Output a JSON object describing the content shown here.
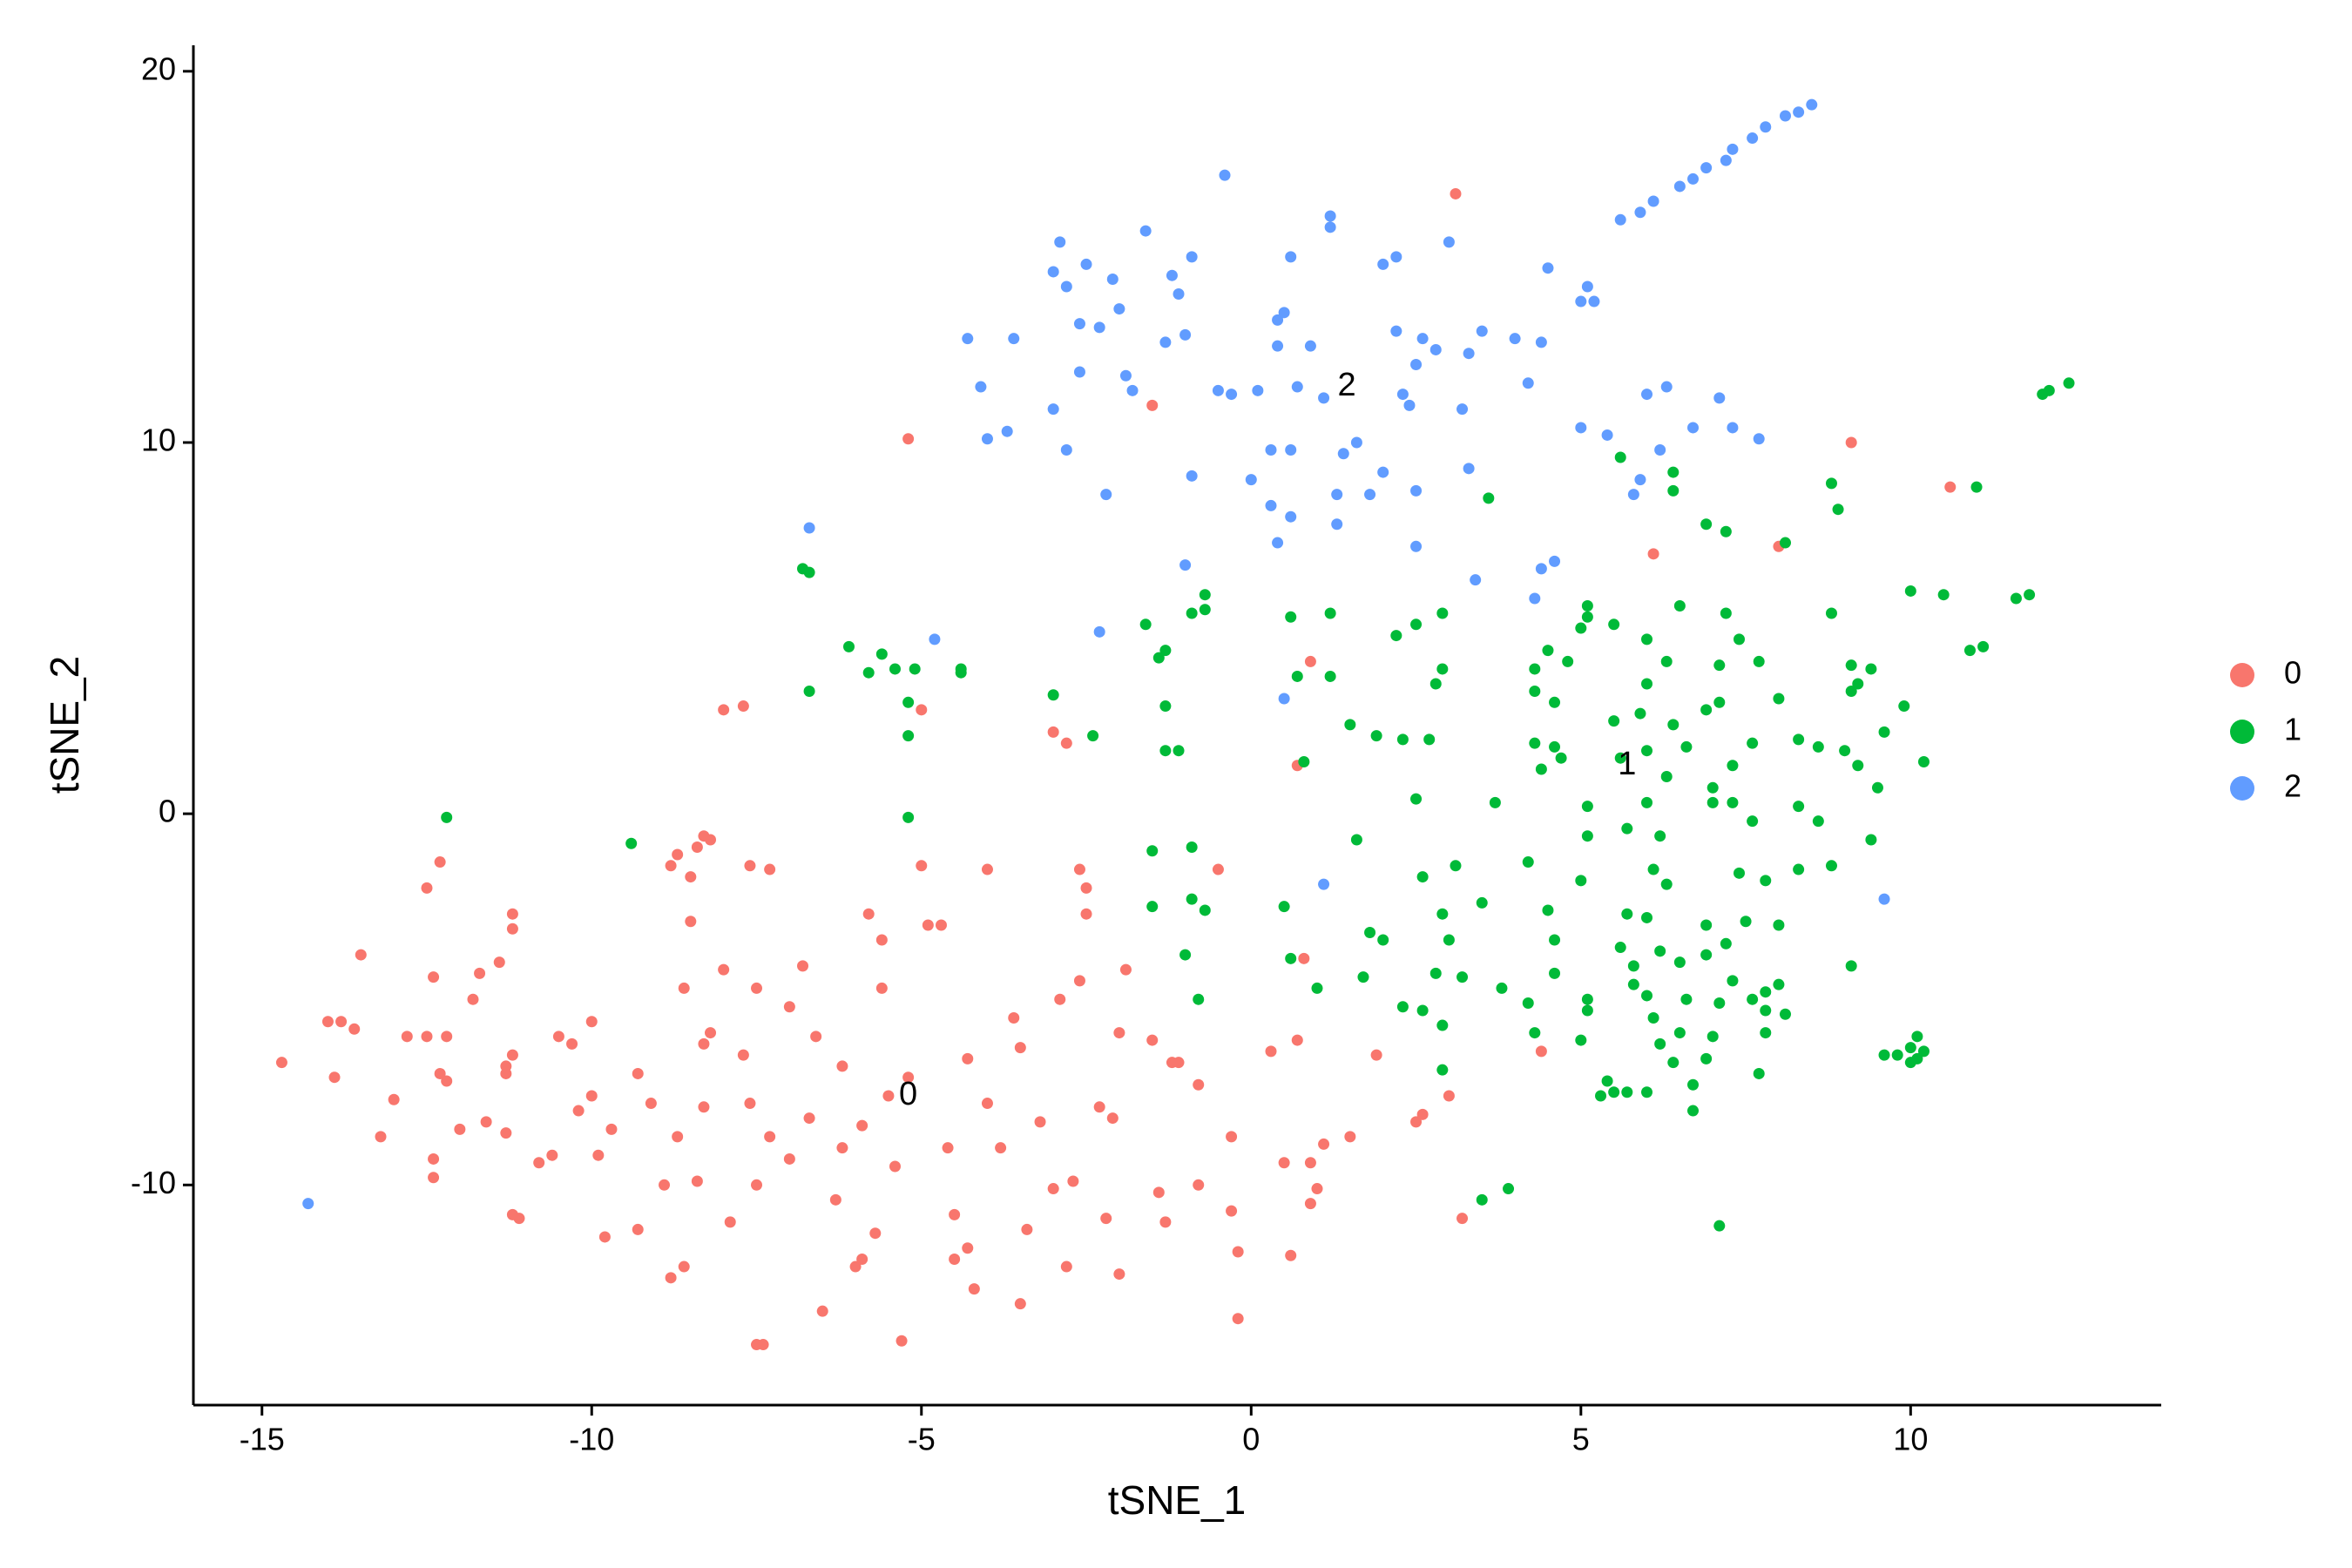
{
  "chart_data": {
    "type": "scatter",
    "x_label": "tSNE_1",
    "y_label": "tSNE_2",
    "xlim": [
      -16.04,
      13.8
    ],
    "ylim": [
      -15.93,
      20.7
    ],
    "xticks": [
      -15,
      -10,
      -5,
      0,
      5,
      10
    ],
    "yticks": [
      -10,
      0,
      10,
      20
    ],
    "grid": false,
    "legend": "right",
    "labels": [
      {
        "text": "0",
        "x": -5.2,
        "y": -7.6
      },
      {
        "text": "1",
        "x": 5.7,
        "y": 1.3
      },
      {
        "text": "2",
        "x": 1.45,
        "y": 11.5
      }
    ],
    "series": [
      {
        "name": "0",
        "color": "#F8766D",
        "x": [
          3.1,
          -1.5,
          -5.2,
          9.1,
          10.6,
          8.0,
          6.1,
          0.9,
          -8.0,
          -7.7,
          -5.0,
          -3.0,
          -2.8,
          0.7,
          -14.7,
          -14.0,
          -13.8,
          -13.9,
          -13.6,
          -13.5,
          -13.2,
          -13.0,
          -12.8,
          -12.5,
          -12.3,
          -12.5,
          -12.4,
          -12.3,
          -12.2,
          -12.2,
          -12.4,
          -12.4,
          -12.0,
          -11.8,
          -11.7,
          -11.6,
          -11.4,
          -11.3,
          -11.3,
          -11.2,
          -11.3,
          -11.2,
          -11.2,
          -11.2,
          -11.1,
          -10.8,
          -10.6,
          -10.5,
          -10.3,
          -10.0,
          -10.0,
          -9.9,
          -10.2,
          -9.8,
          -9.3,
          -9.1,
          -8.9,
          -8.8,
          -8.6,
          -8.6,
          -8.7,
          -8.4,
          -8.3,
          -8.3,
          -8.2,
          -8.2,
          -8.3,
          -8.4,
          -8.7,
          -8.5,
          -8.5,
          -8.8,
          -8.0,
          -7.9,
          -7.7,
          -7.6,
          -7.5,
          -7.5,
          -7.5,
          -7.4,
          -7.3,
          -7.3,
          -7.0,
          -7.0,
          -6.8,
          -6.6,
          -6.3,
          -6.2,
          -6.0,
          -5.9,
          -5.8,
          -5.6,
          -5.6,
          -5.5,
          -5.4,
          -5.3,
          -5.2,
          -5.0,
          -4.9,
          -4.7,
          -4.6,
          -4.5,
          -4.3,
          -4.2,
          -4.0,
          -3.8,
          -3.6,
          -3.5,
          -3.4,
          -3.2,
          -3.0,
          -2.9,
          -2.8,
          -2.6,
          -2.6,
          -2.5,
          -2.5,
          -2.3,
          -2.2,
          -2.0,
          -2.0,
          -1.9,
          -1.5,
          -1.4,
          -1.3,
          -1.2,
          -0.8,
          -0.8,
          -0.3,
          -0.2,
          -0.2,
          0.3,
          0.5,
          0.6,
          0.7,
          0.8,
          0.9,
          1.0,
          1.1,
          1.5,
          -6.5,
          -3.5,
          -4.5,
          -5.7,
          -2.1,
          -4.0,
          -6.7,
          -7.6,
          -5.9,
          -2.7,
          -9.3,
          -9.7,
          1.9,
          2.5,
          2.6,
          3.0,
          4.4,
          3.2,
          -0.5,
          -1.1,
          -0.3,
          0.9,
          -6.2,
          -4.3
        ],
        "values": [
          16.7,
          11.0,
          10.1,
          10.0,
          8.8,
          7.2,
          7.0,
          4.1,
          2.8,
          2.9,
          2.8,
          2.2,
          1.9,
          1.3,
          -6.7,
          -5.6,
          -5.6,
          -7.1,
          -5.8,
          -3.8,
          -8.7,
          -7.7,
          -6.0,
          -2.0,
          -1.3,
          -6.0,
          -4.4,
          -7.0,
          -7.2,
          -6.0,
          -9.3,
          -9.8,
          -8.5,
          -5.0,
          -4.3,
          -8.3,
          -4.0,
          -6.8,
          -7.0,
          -6.5,
          -8.6,
          -2.7,
          -3.1,
          -10.8,
          -10.9,
          -9.4,
          -9.2,
          -6.0,
          -6.2,
          -5.6,
          -7.6,
          -9.2,
          -8.0,
          -11.4,
          -11.2,
          -7.8,
          -10.0,
          -12.5,
          -12.2,
          -4.7,
          -8.7,
          -9.9,
          -6.2,
          -7.9,
          -5.9,
          -0.7,
          -0.6,
          -0.9,
          -1.1,
          -1.7,
          -2.9,
          -1.4,
          -4.2,
          -11.0,
          -6.5,
          -1.4,
          -4.7,
          -10.0,
          -14.3,
          -14.3,
          -8.7,
          -1.5,
          -5.2,
          -9.3,
          -4.1,
          -6.0,
          -10.4,
          -9.0,
          -12.2,
          -12.0,
          -2.7,
          -3.4,
          -4.7,
          -7.6,
          -9.5,
          -14.2,
          -7.1,
          -1.4,
          -3.0,
          -3.0,
          -9.0,
          -10.8,
          -11.7,
          -12.8,
          -1.5,
          -9.0,
          -5.5,
          -6.3,
          -11.2,
          -8.3,
          -10.1,
          -5.0,
          -12.2,
          -4.5,
          -1.5,
          -2.0,
          -2.7,
          -7.9,
          -10.9,
          -5.9,
          -12.4,
          -4.2,
          -6.1,
          -10.2,
          -11.0,
          -6.7,
          -7.3,
          -10.0,
          -8.7,
          -11.8,
          -13.6,
          -6.4,
          -9.4,
          -11.9,
          -6.1,
          -3.9,
          -9.4,
          -10.1,
          -8.9,
          -8.7,
          -13.4,
          -13.2,
          -12.0,
          -11.3,
          -8.2,
          -7.8,
          -8.2,
          -7.8,
          -8.4,
          -9.9,
          -7.0,
          -8.5,
          -6.5,
          -8.3,
          -8.1,
          -7.6,
          -6.4,
          -10.9,
          -1.5,
          -6.7,
          -10.7,
          -10.5,
          -6.8,
          -6.6
        ]
      },
      {
        "name": "1",
        "color": "#00BA38",
        "x": [
          12.4,
          12.1,
          12.0,
          11.0,
          8.8,
          8.9,
          6.4,
          5.6,
          6.4,
          6.9,
          7.2,
          8.1,
          3.6,
          -6.8,
          -6.7,
          -0.7,
          -0.7,
          -0.9,
          -1.6,
          0.6,
          1.2,
          2.5,
          2.9,
          2.2,
          5.1,
          5.1,
          5.5,
          5.0,
          6.0,
          6.5,
          7.2,
          7.4,
          6.3,
          4.5,
          4.8,
          4.3,
          7.7,
          7.1,
          11.8,
          11.6,
          10.0,
          10.5,
          10.9,
          11.1,
          8.8,
          9.1,
          9.4,
          9.2,
          -6.1,
          -5.6,
          -5.4,
          -5.1,
          -4.4,
          -4.4,
          -5.8,
          -1.3,
          -1.4,
          0.7,
          1.2,
          2.9,
          2.8,
          -6.7,
          -5.2,
          -3.0,
          -1.3,
          6.0,
          4.3,
          4.6,
          5.9,
          6.9,
          7.1,
          5.5,
          6.4,
          8.0,
          9.1,
          9.9,
          -5.2,
          -2.4,
          -1.3,
          -1.1,
          0.8,
          1.5,
          1.9,
          2.3,
          2.7,
          4.3,
          4.6,
          4.7,
          6.0,
          6.6,
          7.3,
          7.6,
          8.3,
          8.6,
          9.0,
          9.2,
          9.6,
          10.2,
          4.4,
          5.6,
          6.3,
          7.0,
          9.5,
          2.5,
          3.7,
          5.1,
          6.0,
          7.0,
          7.3,
          8.3,
          5.1,
          5.7,
          6.2,
          7.6,
          8.6,
          9.4,
          -5.2,
          -12.2,
          -9.4,
          -1.5,
          -0.9,
          1.6,
          2.6,
          3.1,
          4.2,
          5.0,
          6.1,
          6.3,
          7.4,
          7.8,
          8.3,
          8.8,
          -1.5,
          -0.9,
          -0.7,
          0.5,
          2.9,
          3.5,
          4.5,
          5.7,
          6.0,
          6.9,
          7.5,
          8.0,
          1.8,
          2.0,
          3.0,
          4.6,
          5.6,
          6.2,
          7.2,
          -1.0,
          0.6,
          2.8,
          3.2,
          4.6,
          5.8,
          6.5,
          6.9,
          7.3,
          8.0,
          9.1,
          1.7,
          1.0,
          3.8,
          5.1,
          5.8,
          6.0,
          6.6,
          7.1,
          7.6,
          7.8,
          -0.8,
          2.3,
          2.6,
          4.2,
          5.1,
          6.1,
          7.8,
          8.1,
          6.5,
          7.0,
          7.8,
          2.9,
          4.3,
          5.0,
          6.2,
          10.1,
          10.0,
          10.2,
          10.1,
          9.8,
          10.0,
          9.6,
          6.4,
          6.9,
          7.7,
          2.9,
          5.4,
          5.5,
          5.3,
          5.7,
          6.0,
          6.7,
          6.7,
          3.5,
          3.9,
          7.1
        ],
        "values": [
          11.6,
          11.4,
          11.3,
          8.8,
          8.9,
          8.2,
          9.2,
          9.6,
          8.7,
          7.8,
          7.6,
          7.3,
          8.5,
          6.6,
          6.5,
          5.9,
          5.5,
          5.4,
          5.1,
          5.3,
          5.4,
          5.1,
          5.4,
          4.8,
          5.6,
          5.3,
          5.1,
          5.0,
          4.7,
          5.6,
          5.4,
          4.7,
          4.1,
          4.4,
          4.1,
          3.9,
          4.1,
          4.0,
          5.9,
          5.8,
          6.0,
          5.9,
          4.4,
          4.5,
          5.4,
          4.0,
          3.9,
          3.5,
          4.5,
          4.3,
          3.9,
          3.9,
          3.9,
          3.8,
          3.8,
          4.4,
          4.2,
          3.7,
          3.7,
          3.9,
          3.5,
          3.3,
          3.0,
          3.2,
          2.9,
          3.5,
          3.3,
          3.0,
          2.7,
          2.8,
          3.0,
          2.5,
          2.4,
          3.1,
          3.3,
          2.9,
          2.1,
          2.1,
          1.7,
          1.7,
          1.4,
          2.4,
          2.1,
          2.0,
          2.0,
          1.9,
          1.8,
          1.5,
          1.7,
          1.8,
          1.3,
          1.9,
          2.0,
          1.8,
          1.7,
          1.3,
          2.2,
          1.4,
          1.2,
          1.5,
          1.0,
          0.7,
          0.7,
          0.4,
          0.3,
          0.2,
          0.3,
          0.3,
          0.3,
          0.2,
          -0.6,
          -0.4,
          -0.6,
          -0.2,
          -0.2,
          -0.7,
          -0.1,
          -0.1,
          -0.8,
          -1.0,
          -0.9,
          -0.7,
          -1.7,
          -1.4,
          -1.3,
          -1.8,
          -1.5,
          -1.9,
          -1.6,
          -1.8,
          -1.5,
          -1.4,
          -2.5,
          -2.3,
          -2.6,
          -2.5,
          -2.7,
          -2.4,
          -2.6,
          -2.7,
          -2.8,
          -3.0,
          -2.9,
          -3.0,
          -3.2,
          -3.4,
          -3.4,
          -3.4,
          -3.6,
          -3.7,
          -3.5,
          -3.8,
          -3.9,
          -4.3,
          -4.4,
          -4.3,
          -4.1,
          -4.0,
          -3.8,
          -4.5,
          -4.6,
          -4.1,
          -4.4,
          -4.7,
          -4.7,
          -5.0,
          -4.6,
          -4.9,
          -5.0,
          -5.1,
          -5.0,
          -4.8,
          -5.0,
          -5.2,
          -5.3,
          -5.1,
          -5.3,
          -5.5,
          -5.3,
          -5.4,
          -5.9,
          -6.0,
          -5.9,
          -5.7,
          -5.9,
          -6.1,
          -6.2,
          -6.0,
          -6.3,
          -6.4,
          -6.6,
          -6.5,
          -6.7,
          -6.5,
          -6.7,
          -6.6,
          -7.0,
          -6.9,
          -7.2,
          -7.5,
          -7.6,
          -7.5,
          -7.5,
          -7.3,
          -8.0,
          -10.4,
          -10.1,
          -11.1
        ]
      },
      {
        "name": "2",
        "color": "#619CFF",
        "x": [
          8.5,
          8.3,
          8.1,
          7.8,
          7.6,
          7.3,
          7.2,
          6.9,
          6.7,
          6.5,
          6.1,
          5.9,
          5.6,
          -0.4,
          1.2,
          1.2,
          3.0,
          -2.9,
          -2.5,
          -1.6,
          -0.9,
          -3.0,
          0.6,
          2.0,
          2.2,
          4.5,
          5.1,
          5.0,
          5.2,
          -2.8,
          -2.1,
          -1.2,
          -1.1,
          -2.6,
          -2.3,
          -2.0,
          -1.3,
          -1.0,
          0.4,
          0.5,
          -4.3,
          -3.6,
          0.4,
          2.2,
          2.6,
          3.5,
          4.0,
          4.4,
          0.9,
          2.8,
          3.3,
          2.5,
          -2.6,
          -1.9,
          -4.1,
          -3.0,
          -1.8,
          -0.5,
          -0.3,
          0.1,
          0.7,
          1.1,
          2.3,
          2.4,
          4.2,
          3.2,
          6.0,
          6.3,
          7.1,
          5.0,
          5.4,
          6.7,
          7.3,
          7.7,
          -3.7,
          -4.0,
          -2.8,
          1.6,
          1.4,
          0.3,
          0.6,
          2.0,
          3.3,
          5.9,
          6.2,
          -0.9,
          0.0,
          1.3,
          1.8,
          2.5,
          -2.2,
          0.3,
          0.6,
          1.3,
          0.4,
          2.5,
          5.8,
          -6.7,
          -1.0,
          3.4,
          4.6,
          4.4,
          4.3,
          -2.3,
          -4.8,
          0.5,
          1.1,
          9.6,
          -14.3
        ],
        "values": [
          19.1,
          18.9,
          18.8,
          18.5,
          18.2,
          17.9,
          17.6,
          17.4,
          17.1,
          16.9,
          16.5,
          16.2,
          16.0,
          17.2,
          16.1,
          15.8,
          15.4,
          15.4,
          14.8,
          15.7,
          15.0,
          14.6,
          15.0,
          14.8,
          15.0,
          14.7,
          14.2,
          13.8,
          13.8,
          14.2,
          14.4,
          14.5,
          14.0,
          13.2,
          13.1,
          13.6,
          12.7,
          12.9,
          13.3,
          13.5,
          12.8,
          12.8,
          12.6,
          13.0,
          12.8,
          13.0,
          12.8,
          12.7,
          12.6,
          12.5,
          12.4,
          12.1,
          11.9,
          11.8,
          11.5,
          10.9,
          11.4,
          11.4,
          11.3,
          11.4,
          11.5,
          11.2,
          11.3,
          11.0,
          11.6,
          10.9,
          11.3,
          11.5,
          11.2,
          10.4,
          10.2,
          10.4,
          10.4,
          10.1,
          10.3,
          10.1,
          9.8,
          10.0,
          9.7,
          9.8,
          9.8,
          9.2,
          9.3,
          9.0,
          9.8,
          9.1,
          9.0,
          8.6,
          8.6,
          8.7,
          8.6,
          8.3,
          8.0,
          7.8,
          7.3,
          7.2,
          8.6,
          7.7,
          6.7,
          6.3,
          6.8,
          6.6,
          5.8,
          4.9,
          4.7,
          3.1,
          -1.9,
          -2.3,
          -10.5
        ]
      }
    ]
  }
}
